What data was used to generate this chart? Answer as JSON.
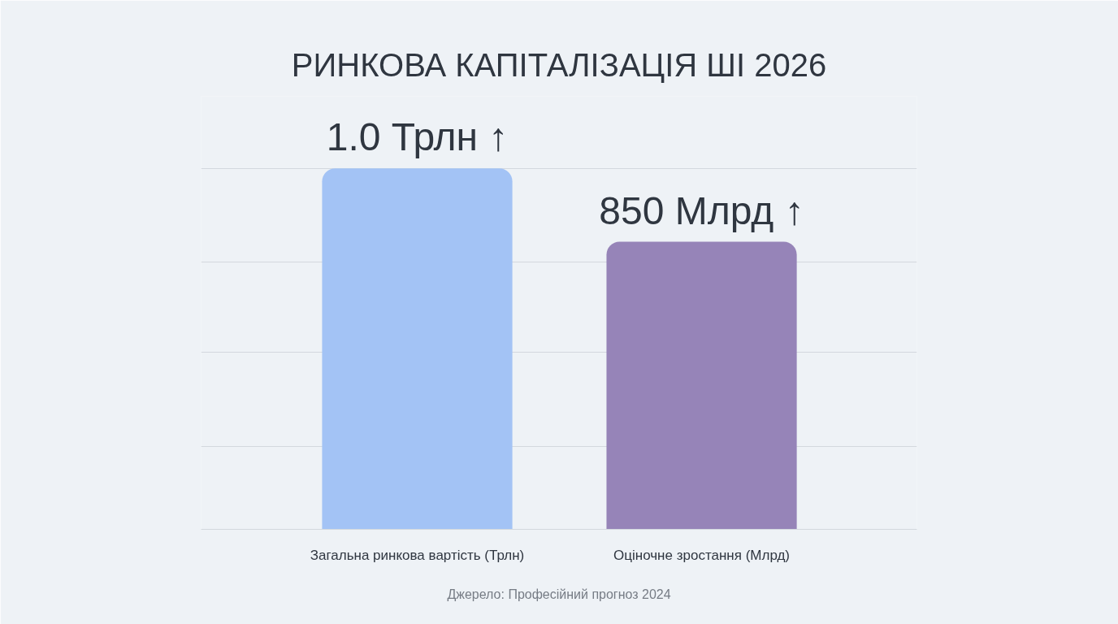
{
  "chart_data": {
    "type": "bar",
    "title": "РИНКОВА КАПІТАЛІЗАЦІЯ ШІ 2026",
    "categories": [
      "Загальна ринкова вартість (Трлн)",
      "Оціночне зростання (Млрд)"
    ],
    "series": [
      {
        "color": "#a3c3f5",
        "values": [
          1.0,
          null
        ],
        "value_labels": [
          "1.0 Трлн ↑",
          null
        ]
      },
      {
        "color": "#9684b8",
        "axis": "y2",
        "values": [
          null,
          850
        ],
        "value_labels": [
          null,
          "850 Млрд ↑"
        ]
      }
    ],
    "ylim": [
      0,
      1.2
    ],
    "yticks": [
      {
        "value": 0.23,
        "label": null
      },
      {
        "value": 0.49,
        "label": null
      },
      {
        "value": 0.74,
        "label": null
      },
      {
        "value": 1.0,
        "label": null
      }
    ],
    "y2lim": [
      0,
      1280
    ],
    "grid": "y",
    "tick_labels": "x",
    "annotations": [
      "Джерело: Професійний прогноз 2024"
    ]
  }
}
